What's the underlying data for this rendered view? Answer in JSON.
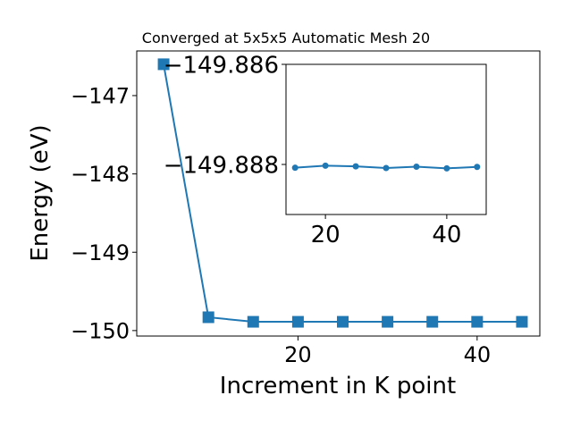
{
  "chart_data": [
    {
      "type": "line",
      "title": "Converged at 5x5x5 Automatic Mesh 20",
      "xlabel": "Increment in K point",
      "ylabel": "Energy (eV)",
      "x": [
        5,
        10,
        15,
        20,
        25,
        30,
        35,
        40,
        45
      ],
      "series": [
        {
          "values": [
            -146.6,
            -149.83,
            -149.888,
            -149.888,
            -149.888,
            -149.888,
            -149.888,
            -149.888,
            -149.888
          ],
          "marker": "square",
          "color": "#1f77b4"
        }
      ],
      "xlim": [
        2.0,
        47.0
      ],
      "ylim": [
        -150.07,
        -146.43
      ],
      "xticks": [
        20,
        40
      ],
      "xtick_labels": [
        "20",
        "40"
      ],
      "yticks": [
        -147,
        -148,
        -149,
        -150
      ],
      "ytick_labels": [
        "−147",
        "−148",
        "−149",
        "−150"
      ],
      "grid": false
    },
    {
      "type": "line",
      "title": "",
      "xlabel": "",
      "ylabel": "",
      "x": [
        15,
        20,
        25,
        30,
        35,
        40,
        45
      ],
      "series": [
        {
          "values": [
            -149.8880655,
            -149.888024,
            -149.8880375,
            -149.888071,
            -149.8880445,
            -149.8880775,
            -149.888049
          ],
          "marker": "circle",
          "color": "#1f77b4"
        }
      ],
      "xlim": [
        13.5,
        46.5
      ],
      "ylim": [
        -149.889,
        -149.886
      ],
      "xticks": [
        20,
        40
      ],
      "xtick_labels": [
        "20",
        "40"
      ],
      "yticks": [
        -149.888,
        -149.886
      ],
      "ytick_labels": [
        "−149.888",
        "−149.886"
      ],
      "grid": false
    }
  ]
}
